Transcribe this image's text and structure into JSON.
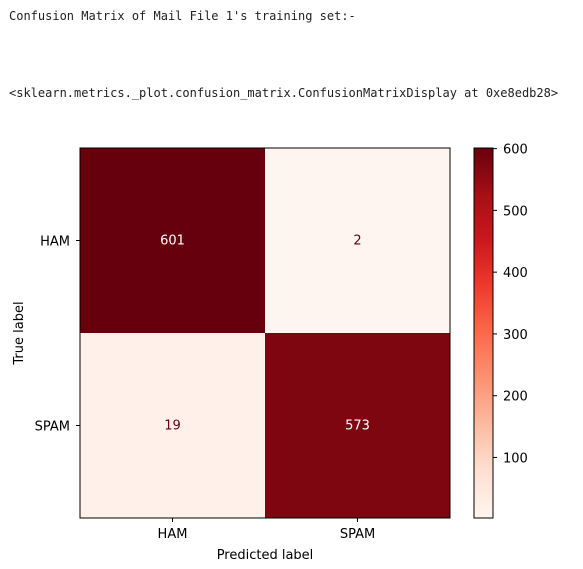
{
  "output": {
    "print_text": "Confusion Matrix of Mail File 1's training set:-",
    "repr_text": "<sklearn.metrics._plot.confusion_matrix.ConfusionMatrixDisplay at 0xe8edb28>"
  },
  "chart_data": {
    "type": "heatmap",
    "title": "",
    "xlabel": "Predicted label",
    "ylabel": "True label",
    "x_categories": [
      "HAM",
      "SPAM"
    ],
    "y_categories": [
      "HAM",
      "SPAM"
    ],
    "values": [
      [
        601,
        2
      ],
      [
        19,
        573
      ]
    ],
    "colormap": "Reds",
    "colorbar": {
      "ticks": [
        100,
        200,
        300,
        400,
        500,
        600
      ],
      "range": [
        2,
        601
      ]
    },
    "grid": false
  }
}
